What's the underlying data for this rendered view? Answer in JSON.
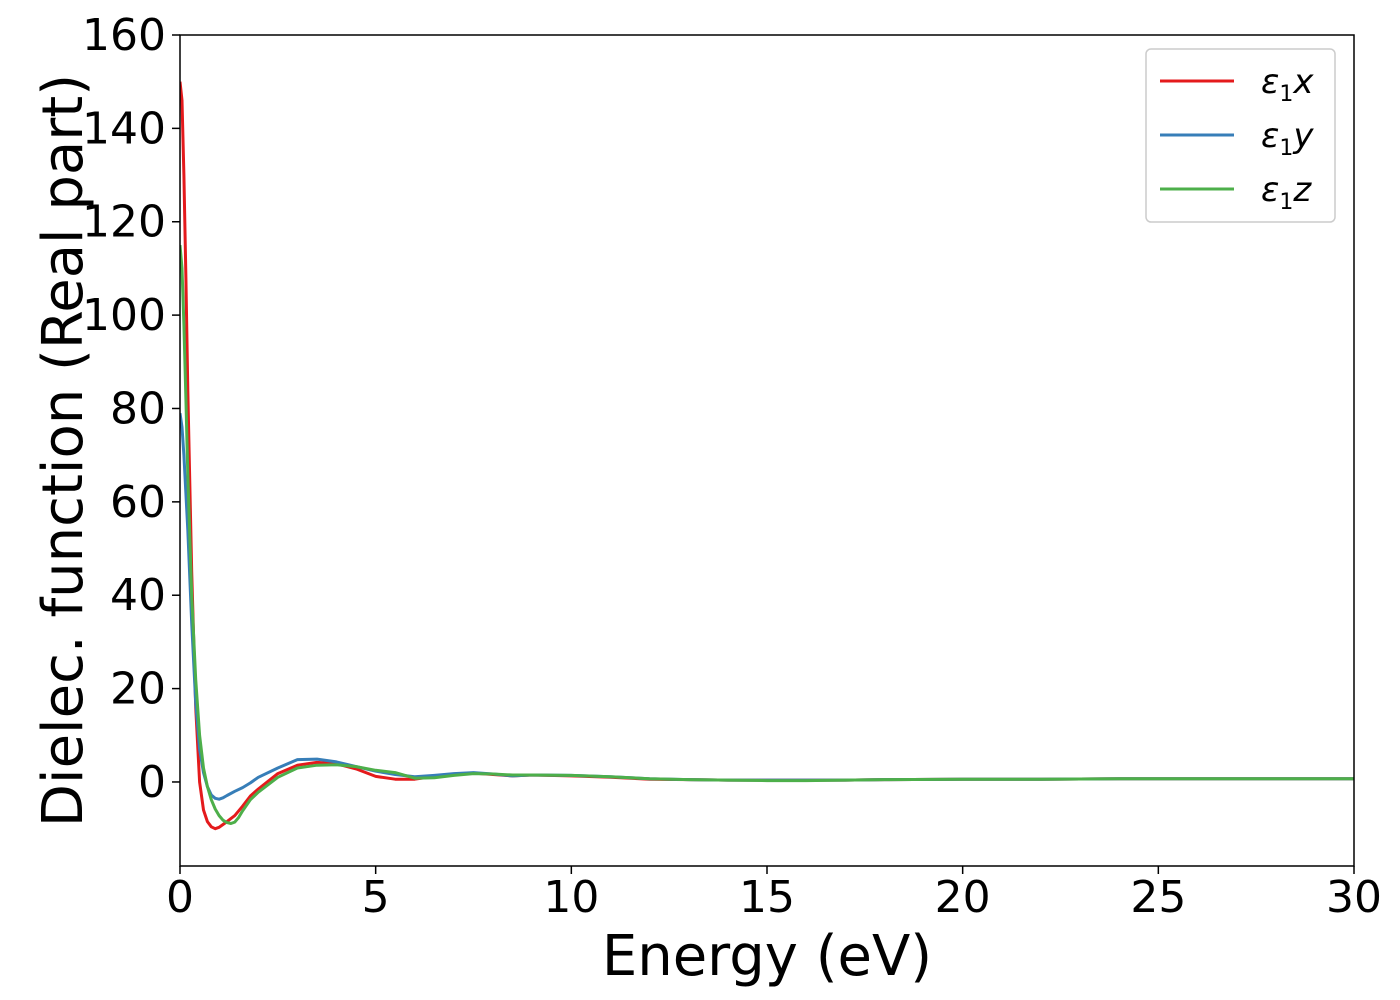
{
  "chart_data": {
    "type": "line",
    "title": "",
    "xlabel": "Energy (eV)",
    "ylabel": "Dielec. function (Real part)",
    "xlim": [
      0,
      30
    ],
    "ylim": [
      -18,
      160
    ],
    "xticks": [
      0,
      5,
      10,
      15,
      20,
      25,
      30
    ],
    "yticks": [
      0,
      20,
      40,
      60,
      80,
      100,
      120,
      140,
      160
    ],
    "grid": false,
    "legend_position": "top-right",
    "series": [
      {
        "name": "ε1x",
        "symbol": "ε",
        "sub": "1",
        "axis": "x",
        "color": "#e41a1c",
        "x": [
          0,
          0.05,
          0.1,
          0.15,
          0.2,
          0.3,
          0.4,
          0.5,
          0.6,
          0.7,
          0.8,
          0.9,
          1.0,
          1.1,
          1.2,
          1.4,
          1.6,
          1.8,
          2.0,
          2.5,
          3.0,
          3.5,
          4.0,
          4.5,
          5.0,
          5.5,
          6.0,
          6.5,
          7.0,
          7.5,
          8.0,
          8.5,
          9.0,
          10,
          11,
          12,
          13,
          14,
          15,
          16,
          17,
          18,
          20,
          22,
          24,
          26,
          28,
          30
        ],
        "y": [
          150,
          146,
          130,
          108,
          84,
          45,
          16,
          0,
          -6,
          -8.5,
          -9.6,
          -10,
          -9.7,
          -9.1,
          -8.5,
          -7.2,
          -5.2,
          -3.0,
          -1.5,
          1.8,
          3.6,
          4.2,
          3.9,
          2.8,
          1.2,
          0.6,
          0.6,
          1.2,
          1.7,
          1.9,
          1.6,
          1.3,
          1.5,
          1.3,
          1.0,
          0.6,
          0.5,
          0.4,
          0.4,
          0.4,
          0.4,
          0.5,
          0.6,
          0.6,
          0.7,
          0.7,
          0.7,
          0.7
        ]
      },
      {
        "name": "ε1y",
        "symbol": "ε",
        "sub": "1",
        "axis": "y",
        "color": "#377eb8",
        "x": [
          0,
          0.05,
          0.1,
          0.2,
          0.3,
          0.4,
          0.5,
          0.6,
          0.7,
          0.8,
          0.9,
          1.0,
          1.1,
          1.2,
          1.4,
          1.6,
          1.8,
          2.0,
          2.5,
          3.0,
          3.5,
          4.0,
          4.5,
          5.0,
          5.5,
          6.0,
          6.5,
          7.0,
          7.5,
          8.0,
          8.5,
          9.0,
          10,
          11,
          12,
          13,
          14,
          15,
          16,
          17,
          18,
          20,
          22,
          24,
          26,
          28,
          30
        ],
        "y": [
          79,
          76,
          70,
          54,
          34,
          17,
          7,
          2,
          -1,
          -2.8,
          -3.5,
          -3.7,
          -3.4,
          -2.9,
          -2,
          -1.2,
          -0.2,
          1,
          3,
          4.8,
          4.9,
          4.3,
          3.3,
          2.3,
          1.6,
          1.1,
          1.4,
          1.8,
          2.0,
          1.7,
          1.3,
          1.5,
          1.4,
          1.1,
          0.7,
          0.5,
          0.4,
          0.4,
          0.4,
          0.4,
          0.5,
          0.6,
          0.6,
          0.7,
          0.7,
          0.7,
          0.7
        ]
      },
      {
        "name": "ε1z",
        "symbol": "ε",
        "sub": "1",
        "axis": "z",
        "color": "#4daf4a",
        "x": [
          0,
          0.05,
          0.1,
          0.15,
          0.2,
          0.3,
          0.4,
          0.5,
          0.6,
          0.7,
          0.8,
          0.9,
          1.0,
          1.1,
          1.2,
          1.3,
          1.4,
          1.5,
          1.6,
          1.8,
          2.0,
          2.5,
          3.0,
          3.5,
          4.0,
          4.5,
          5.0,
          5.5,
          6.0,
          6.5,
          7.0,
          7.5,
          8.0,
          8.5,
          9.0,
          10,
          11,
          12,
          13,
          14,
          15,
          16,
          17,
          18,
          20,
          22,
          24,
          26,
          28,
          30
        ],
        "y": [
          115,
          110,
          98,
          82,
          66,
          40,
          22,
          10,
          3,
          -1,
          -3.8,
          -5.8,
          -7.2,
          -8.2,
          -8.7,
          -8.9,
          -8.6,
          -7.6,
          -6.2,
          -3.8,
          -2.2,
          1,
          3,
          3.6,
          3.7,
          3.3,
          2.5,
          2,
          0.8,
          0.9,
          1.4,
          1.8,
          1.7,
          1.5,
          1.5,
          1.4,
          1.1,
          0.7,
          0.5,
          0.4,
          0.3,
          0.3,
          0.4,
          0.5,
          0.6,
          0.6,
          0.7,
          0.7,
          0.7,
          0.7
        ]
      }
    ]
  }
}
